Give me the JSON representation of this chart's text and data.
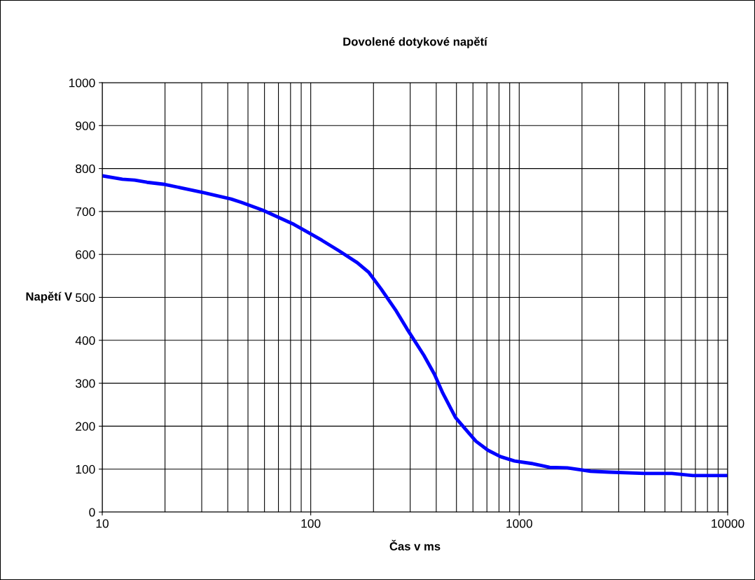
{
  "chart_data": {
    "type": "line",
    "title": "Dovolené dotykové napětí",
    "xlabel": "Čas v ms",
    "ylabel": "Napětí V",
    "log": "x",
    "grid": true,
    "marker": "none",
    "line_style": "solid",
    "xlim": [
      10,
      10000
    ],
    "xticks": [
      10,
      100,
      1000,
      10000
    ],
    "ylim": [
      0,
      1000
    ],
    "yticks": [
      0,
      100,
      200,
      300,
      400,
      500,
      600,
      700,
      800,
      900,
      1000
    ],
    "series": [
      {
        "color": "#0000ff",
        "x": [
          10,
          12.5,
          14.3,
          16.4,
          20,
          30.5,
          41.5,
          46.6,
          58.8,
          83,
          100,
          113,
          137,
          167,
          190,
          218,
          255,
          290,
          349,
          392,
          430,
          495,
          555,
          620,
          708,
          813,
          950,
          1150,
          1400,
          1700,
          2200,
          2700,
          4000,
          5400,
          6800,
          10000
        ],
        "values": [
          783,
          775,
          773,
          768,
          763,
          744,
          729,
          721,
          703,
          670,
          648,
          633,
          608,
          581,
          558,
          519,
          471,
          426,
          365,
          321,
          277,
          220,
          192,
          165,
          144,
          129,
          119,
          113,
          104,
          103,
          95,
          93,
          90,
          90,
          85,
          85
        ]
      }
    ]
  }
}
